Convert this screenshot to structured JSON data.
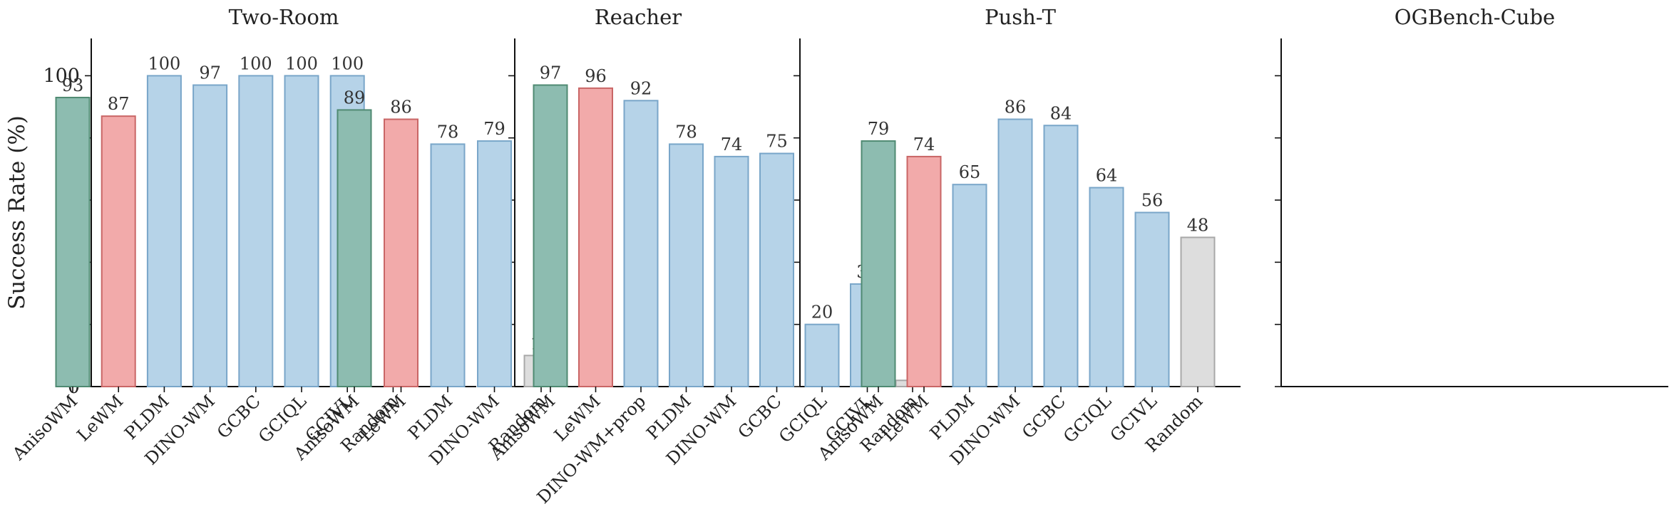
{
  "chart_data": [
    {
      "type": "bar",
      "title": "Two-Room",
      "ylabel": "Success Rate (%)",
      "ylim": [
        0,
        112
      ],
      "yticks": [
        0,
        20,
        40,
        60,
        80,
        100
      ],
      "grid": false,
      "categories": [
        "AnisoWM",
        "LeWM",
        "PLDM",
        "DINO-WM",
        "GCBC",
        "GCIQL",
        "GCIVL",
        "Random"
      ],
      "values": [
        93,
        87,
        100,
        97,
        100,
        100,
        100,
        0
      ],
      "bar_colors": [
        "green",
        "red",
        "blue",
        "blue",
        "blue",
        "blue",
        "blue",
        "gray"
      ]
    },
    {
      "type": "bar",
      "title": "Reacher",
      "ylim": [
        0,
        112
      ],
      "yticks": [
        0,
        20,
        40,
        60,
        80,
        100
      ],
      "grid": false,
      "categories": [
        "AnisoWM",
        "LeWM",
        "PLDM",
        "DINO-WM",
        "Random"
      ],
      "values": [
        89,
        86,
        78,
        79,
        10
      ],
      "bar_colors": [
        "green",
        "red",
        "blue",
        "blue",
        "gray"
      ]
    },
    {
      "type": "bar",
      "title": "Push-T",
      "ylim": [
        0,
        112
      ],
      "yticks": [
        0,
        20,
        40,
        60,
        80,
        100
      ],
      "grid": false,
      "categories": [
        "AnisoWM",
        "LeWM",
        "DINO-WM+prop",
        "PLDM",
        "DINO-WM",
        "GCBC",
        "GCIQL",
        "GCIVL",
        "Random"
      ],
      "values": [
        97,
        96,
        92,
        78,
        74,
        75,
        20,
        33,
        2
      ],
      "bar_colors": [
        "green",
        "red",
        "blue",
        "blue",
        "blue",
        "blue",
        "blue",
        "blue",
        "gray"
      ]
    },
    {
      "type": "bar",
      "title": "OGBench-Cube",
      "ylim": [
        0,
        112
      ],
      "yticks": [
        0,
        20,
        40,
        60,
        80,
        100
      ],
      "grid": false,
      "categories": [
        "AnisoWM",
        "LeWM",
        "PLDM",
        "DINO-WM",
        "GCBC",
        "GCIQL",
        "GCIVL",
        "Random"
      ],
      "values": [
        79,
        74,
        65,
        86,
        84,
        64,
        56,
        48
      ],
      "bar_colors": [
        "green",
        "red",
        "blue",
        "blue",
        "blue",
        "blue",
        "blue",
        "gray"
      ]
    }
  ],
  "palette": {
    "green": {
      "fill": "#8dbcb0",
      "stroke": "#4f8a72"
    },
    "red": {
      "fill": "#f2aaaa",
      "stroke": "#c96666"
    },
    "blue": {
      "fill": "#b6d3e8",
      "stroke": "#79a6c9"
    },
    "gray": {
      "fill": "#dddddd",
      "stroke": "#a8a8a8"
    }
  }
}
